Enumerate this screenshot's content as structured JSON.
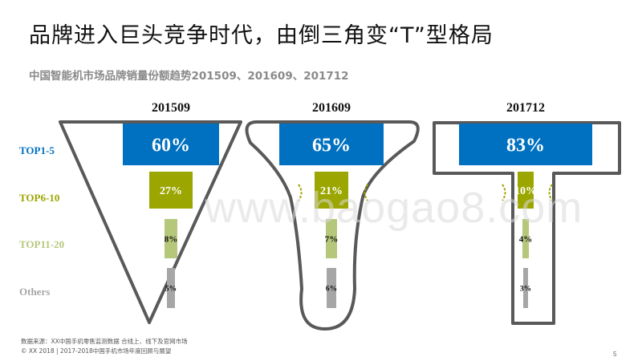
{
  "slide": {
    "title": "品牌进入巨头竞争时代，由倒三角变“T”型格局",
    "source_line1": "数据来源：XX中国手机零售监测数据  合线上、线下及官网市场",
    "source_line2": "© XX 2018 | 2017-2018中国手机市场年度回顾与展望",
    "page_number": "5",
    "watermark": "www.baogao8.com"
  },
  "colors": {
    "top1_5": "#0070c0",
    "top6_10": "#9ba600",
    "top11_20": "#b5c77a",
    "others": "#a6a6a6",
    "outline": "#595959"
  },
  "chart_data": {
    "type": "bar",
    "title": "中国智能机市场品牌销量份额趋势201509、201609、201712",
    "categories": [
      "TOP1-5",
      "TOP6-10",
      "TOP11-20",
      "Others"
    ],
    "series": [
      {
        "name": "201509",
        "values": [
          60,
          27,
          8,
          5
        ],
        "labels": [
          "60%",
          "27%",
          "8%",
          "5%"
        ]
      },
      {
        "name": "201609",
        "values": [
          65,
          21,
          7,
          6
        ],
        "labels": [
          "65%",
          "21%",
          "7%",
          "6%"
        ]
      },
      {
        "name": "201712",
        "values": [
          83,
          10,
          4,
          3
        ],
        "labels": [
          "83%",
          "10%",
          "4%",
          "3%"
        ]
      }
    ],
    "outline_shapes": [
      "inverted-triangle",
      "funnel",
      "T-shape"
    ]
  }
}
